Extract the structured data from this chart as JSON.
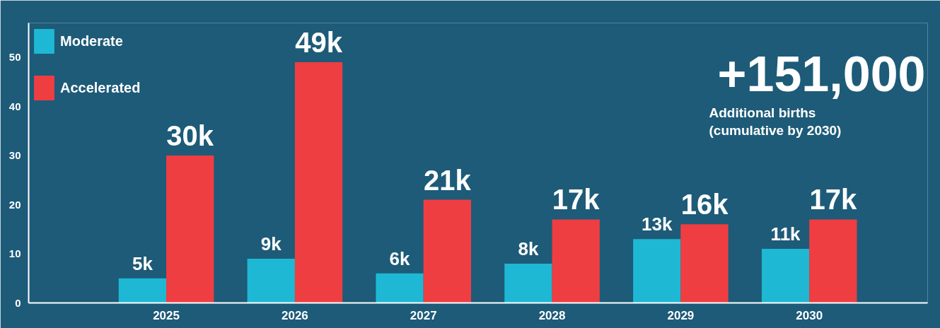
{
  "chart_data": {
    "type": "bar",
    "categories": [
      "2025",
      "2026",
      "2027",
      "2028",
      "2029",
      "2030"
    ],
    "series": [
      {
        "name": "Moderate",
        "color": "#1eb8d4",
        "values": [
          5,
          9,
          6,
          8,
          13,
          11
        ],
        "value_labels": [
          "5k",
          "9k",
          "6k",
          "8k",
          "13k",
          "11k"
        ]
      },
      {
        "name": "Accelerated",
        "color": "#ef3e42",
        "values": [
          30,
          49,
          21,
          17,
          16,
          17
        ],
        "value_labels": [
          "30k",
          "49k",
          "21k",
          "17k",
          "16k",
          "17k"
        ]
      }
    ],
    "ylim": [
      0,
      57
    ],
    "yticks": [
      0,
      10,
      20,
      30,
      40,
      50
    ],
    "grid": false,
    "legend": "top left",
    "annotations": [
      "+151,000",
      "Additional births\n(cumulative by 2030)"
    ]
  }
}
